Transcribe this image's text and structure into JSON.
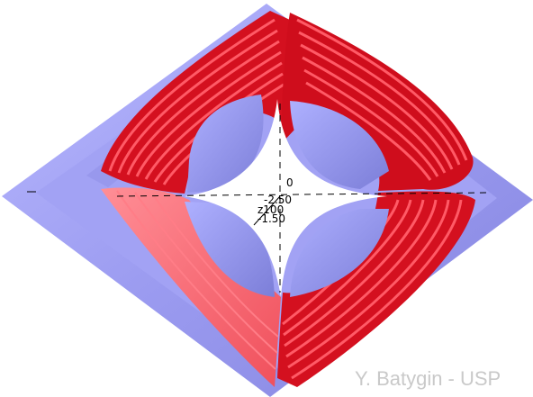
{
  "figure": {
    "description_colors": {
      "yoke": "#9c9cf2",
      "yoke_light": "#b4b4ff",
      "yoke_dark": "#8181dd",
      "coil": "#e8202e",
      "coil_light": "#ff6d78",
      "coil_dark": "#b5000e",
      "coil_pale": "#ff9aa1",
      "axis": "#000000"
    },
    "axis_labels": {
      "a": "-2.50",
      "b": "z100",
      "c": "-1.50",
      "d": "0"
    },
    "credit": "Y. Batygin - USP"
  }
}
